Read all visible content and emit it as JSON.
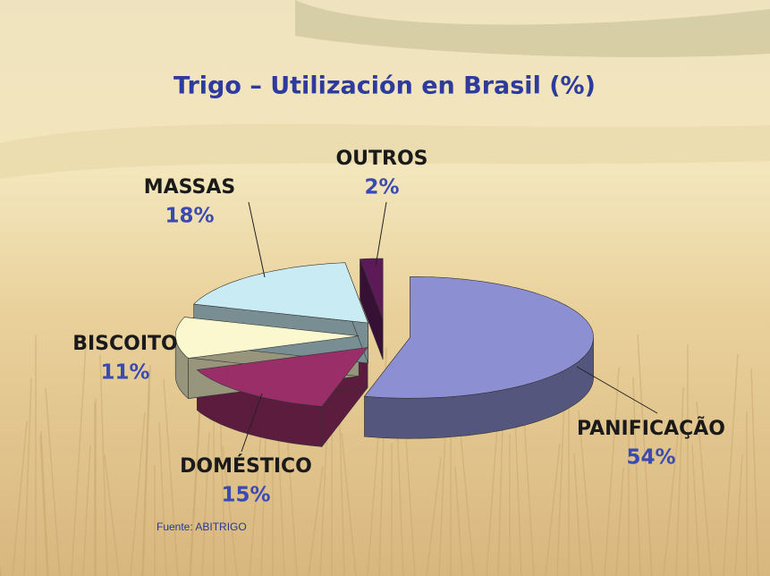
{
  "chart_data": {
    "type": "pie",
    "title": "Trigo – Utilización en Brasil (%)",
    "categories": [
      "PANIFICAÇÃO",
      "DOMÉSTICO",
      "BISCOITO",
      "MASSAS",
      "OUTROS"
    ],
    "values": [
      54,
      15,
      11,
      18,
      2
    ],
    "value_labels": [
      "54%",
      "15%",
      "11%",
      "18%",
      "2%"
    ],
    "colors": [
      "#8c90d2",
      "#9a2e68",
      "#fbf8cf",
      "#c9ecf4",
      "#5c1b58"
    ],
    "source": "Fuente: ABITRIGO"
  }
}
